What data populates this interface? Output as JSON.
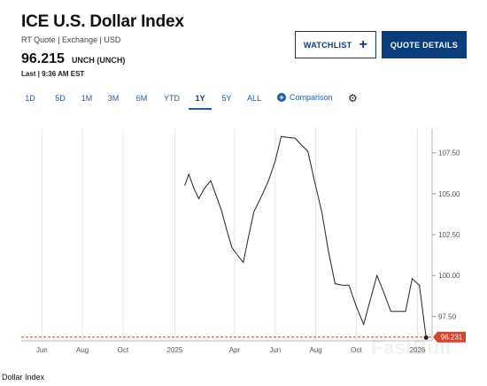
{
  "header": {
    "title": "ICE U.S. Dollar Index",
    "subtitle": "RT Quote | Exchange | USD",
    "price": "96.215",
    "change": "UNCH (UNCH)",
    "last": "Last | 9:36 AM EST"
  },
  "buttons": {
    "watchlist_label": "WATCHLIST",
    "watchlist_icon": "plus-icon",
    "quote_details_label": "QUOTE DETAILS"
  },
  "tabs": [
    "1D",
    "5D",
    "1M",
    "3M",
    "6M",
    "YTD",
    "1Y",
    "5Y",
    "ALL"
  ],
  "active_tab": "1Y",
  "comparison_label": "Comparison",
  "settings_icon": "gear-icon",
  "colors": {
    "brand_blue": "#0b3d7a",
    "link_blue": "#1f5fa8",
    "last_price_red": "#d9432f",
    "line": "#222222"
  },
  "chart_data": {
    "type": "line",
    "x": [
      "2025-01-16",
      "2025-01-22",
      "2025-01-30",
      "2025-02-06",
      "2025-02-14",
      "2025-02-24",
      "2025-03-04",
      "2025-03-12",
      "2025-03-20",
      "2025-03-28",
      "2025-04-06",
      "2025-04-14",
      "2025-04-22",
      "2025-04-30",
      "2025-05-12",
      "2025-05-22",
      "2025-06-01",
      "2025-06-10",
      "2025-06-20",
      "2025-07-01",
      "2025-07-10",
      "2025-07-20",
      "2025-07-30",
      "2025-08-10",
      "2025-08-20",
      "2025-08-30",
      "2025-09-10",
      "2025-09-20",
      "2025-10-01",
      "2025-10-12",
      "2025-10-22",
      "2025-11-01",
      "2025-11-12",
      "2025-11-22",
      "2025-12-02",
      "2025-12-14",
      "2025-12-24",
      "2026-01-04",
      "2026-01-14"
    ],
    "values": [
      105.5,
      106.2,
      105.3,
      104.7,
      105.3,
      105.8,
      104.9,
      104.0,
      102.8,
      101.7,
      101.2,
      100.8,
      102.4,
      103.9,
      104.9,
      105.8,
      107.0,
      108.5,
      108.45,
      108.4,
      108.0,
      107.6,
      105.8,
      103.9,
      101.5,
      99.5,
      99.4,
      99.4,
      98.1,
      97.0,
      98.5,
      100.0,
      98.9,
      97.8,
      97.8,
      97.8,
      99.8,
      99.4,
      96.2
    ],
    "last_value": "96.231",
    "x_tick_labels": [
      "Jun",
      "Aug",
      "Oct",
      "2025",
      "Apr",
      "Jun",
      "Aug",
      "Oct",
      "2026"
    ],
    "y_tick_labels": [
      "107.50",
      "105.00",
      "102.50",
      "100.00",
      "97.50"
    ],
    "y_ticks": [
      107.5,
      105.0,
      102.5,
      100.0,
      97.5
    ],
    "ylim": [
      96.0,
      109.0
    ],
    "grid": "vertical",
    "title": "",
    "xlabel": "",
    "ylabel": ""
  },
  "footer_label": "Dollar Index",
  "watermark": "FastBull"
}
